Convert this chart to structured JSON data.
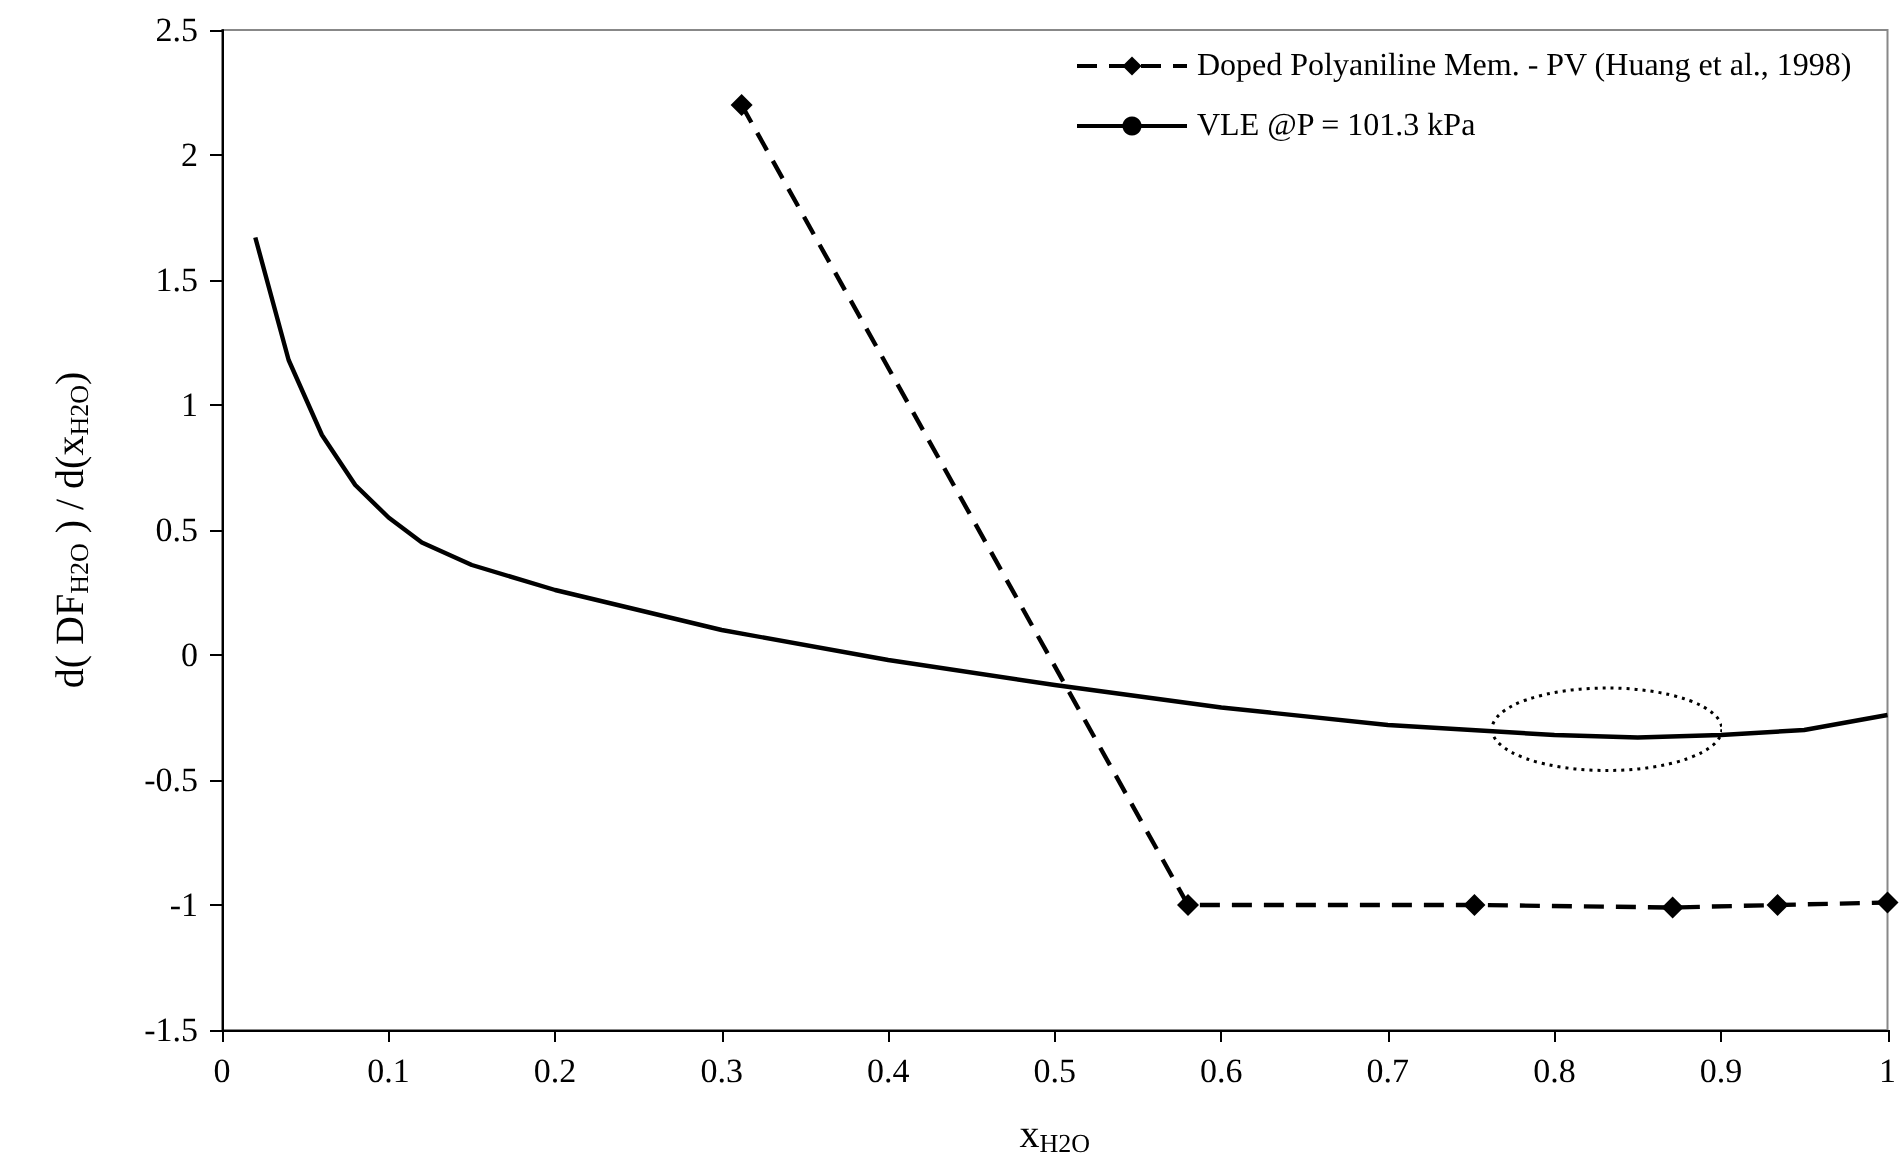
{
  "chart_data": {
    "type": "line",
    "xlabel": "x$_{H2O}$",
    "ylabel": "d( DF$_{H2O}$ ) / d(x$_{H2O}$)",
    "xlim": [
      0,
      1
    ],
    "xticks": [
      0,
      0.1,
      0.2,
      0.3,
      0.4,
      0.5,
      0.6,
      0.7,
      0.8,
      0.9,
      1
    ],
    "ylim": [
      -1.5,
      2.5
    ],
    "yticks": [
      -1.5,
      -1,
      -0.5,
      0,
      0.5,
      1,
      1.5,
      2,
      2.5
    ],
    "grid": false,
    "legend": "top right",
    "series": [
      {
        "name": "Doped Polyaniline Mem. - PV (Huang et al., 1998)",
        "color": "#000000",
        "marker": "diamond",
        "line_style": "dashed",
        "x": [
          0.312,
          0.58,
          0.752,
          0.871,
          0.934,
          1.0
        ],
        "values": [
          2.2,
          -1.0,
          -1.0,
          -1.01,
          -1.0,
          -0.99
        ]
      },
      {
        "name": "VLE @P = 101.3 kPa",
        "color": "#000000",
        "marker": "none",
        "line_style": "solid",
        "x": [
          0.02,
          0.04,
          0.06,
          0.08,
          0.1,
          0.12,
          0.15,
          0.2,
          0.3,
          0.4,
          0.5,
          0.6,
          0.7,
          0.8,
          0.85,
          0.9,
          0.95,
          1.0
        ],
        "values": [
          1.67,
          1.18,
          0.88,
          0.68,
          0.55,
          0.45,
          0.36,
          0.26,
          0.1,
          -0.02,
          -0.12,
          -0.21,
          -0.28,
          -0.32,
          -0.33,
          -0.32,
          -0.3,
          -0.24
        ]
      }
    ]
  }
}
